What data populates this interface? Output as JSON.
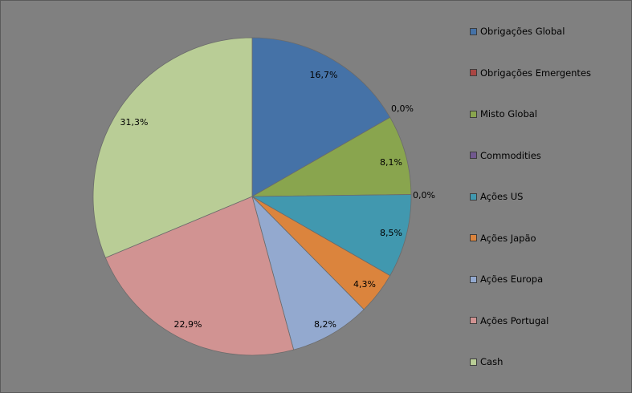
{
  "chart_data": {
    "type": "pie",
    "legend_position": "right",
    "slices": [
      {
        "label": "Obrigações Global",
        "value": 16.7,
        "display": "16,7%",
        "color": "#4572a7"
      },
      {
        "label": "Obrigações Emergentes",
        "value": 0.0,
        "display": "0,0%",
        "color": "#aa4643"
      },
      {
        "label": "Misto Global",
        "value": 8.1,
        "display": "8,1%",
        "color": "#89a54e"
      },
      {
        "label": "Commodities",
        "value": 0.0,
        "display": "0,0%",
        "color": "#71588f"
      },
      {
        "label": "Ações US",
        "value": 8.5,
        "display": "8,5%",
        "color": "#4198af"
      },
      {
        "label": "Ações Japão",
        "value": 4.3,
        "display": "4,3%",
        "color": "#db843d"
      },
      {
        "label": "Ações Europa",
        "value": 8.2,
        "display": "8,2%",
        "color": "#93a9cf"
      },
      {
        "label": "Ações Portugal",
        "value": 22.9,
        "display": "22,9%",
        "color": "#d19392"
      },
      {
        "label": "Cash",
        "value": 31.3,
        "display": "31,3%",
        "color": "#b9cd96"
      }
    ]
  }
}
